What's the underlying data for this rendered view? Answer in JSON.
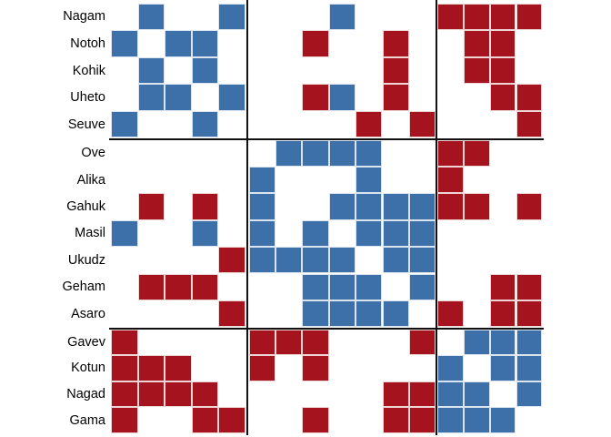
{
  "chart_data": {
    "type": "heatmap",
    "subtype": "blockmodel-adjacency-matrix",
    "title": "",
    "legend": "none",
    "rows": [
      "Nagam",
      "Notoh",
      "Kohik",
      "Uheto",
      "Seuve",
      "Ove",
      "Alika",
      "Gahuk",
      "Masil",
      "Ukudz",
      "Geham",
      "Asaro",
      "Gavev",
      "Kotun",
      "Nagad",
      "Gama"
    ],
    "matrix": [
      ".B..B...B...RRRR",
      "B.BB...R..R..RR.",
      ".B.B......R..RR.",
      ".BB.B..RB.R...RR",
      "B..B.....R.R...R",
      "......BBBB..RR..",
      ".....B...B..R...",
      ".R.R.B..BBBBRR.R",
      "B..B.B.B.BBB....",
      "....RBBBB.BB....",
      ".RRR...BBB.B..RR",
      "....R..BBBB.R.RR",
      "R....RRR...R.BBB",
      "RRR..R.R....B.BB",
      "RRRR......RRBB.B",
      "R..RR..R..RRBBB."
    ],
    "cell_codes": {
      ".": "empty",
      "B": "blue",
      "R": "red"
    },
    "row_groups": [
      5,
      7,
      4
    ],
    "col_groups": [
      5,
      7,
      4
    ],
    "colors": {
      "blue": "#3d70a8",
      "red": "#a5131f",
      "divider": "#111111",
      "background": "#ffffff",
      "label_text": "#000000"
    }
  }
}
